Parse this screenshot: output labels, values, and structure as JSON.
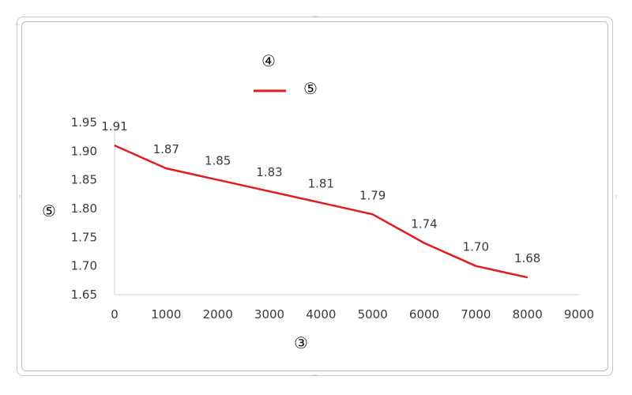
{
  "chart_data": {
    "type": "line",
    "title": "④",
    "xlabel": "③",
    "ylabel": "⑤",
    "xlim": [
      0,
      9000
    ],
    "ylim": [
      1.65,
      1.95
    ],
    "x_ticks": [
      0,
      1000,
      2000,
      3000,
      4000,
      5000,
      6000,
      7000,
      8000,
      9000
    ],
    "y_ticks": [
      "1.65",
      "1.70",
      "1.75",
      "1.80",
      "1.85",
      "1.90",
      "1.95"
    ],
    "grid": false,
    "legend": "top",
    "series": [
      {
        "name": "⑤",
        "color": "#e31b1b",
        "x": [
          0,
          1000,
          2000,
          3000,
          4000,
          5000,
          6000,
          7000,
          8000
        ],
        "y": [
          1.91,
          1.87,
          1.85,
          1.83,
          1.81,
          1.79,
          1.74,
          1.7,
          1.68
        ],
        "labels": [
          "1.91",
          "1.87",
          "1.85",
          "1.83",
          "1.81",
          "1.79",
          "1.74",
          "1.70",
          "1.68"
        ]
      }
    ]
  }
}
